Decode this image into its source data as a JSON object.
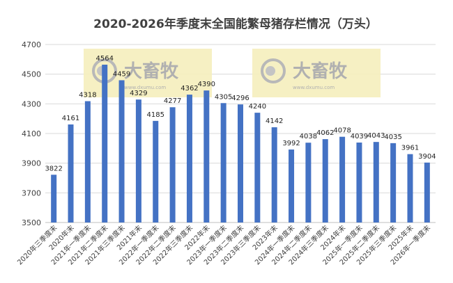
{
  "chart_data": {
    "type": "bar",
    "title": "2020-2026年季度末全国能繁母猪存栏情况（万头）",
    "categories": [
      "2020年三季度末",
      "2020年末",
      "2021年一季度末",
      "2021年二季度末",
      "2021年三季度末",
      "2021年末",
      "2022年一季度末",
      "2022年二季度末",
      "2022年三季度末",
      "2022年末",
      "2023年一季度末",
      "2023年二季度末",
      "2023年三季度末",
      "2023年末",
      "2024年一季度末",
      "2024年二季度末",
      "2024年三季度末",
      "2024年末",
      "2025年一季度末",
      "2025年二季度末",
      "2025年三季度末",
      "2025年末",
      "2026年一季度末"
    ],
    "values": [
      3822,
      4161,
      4318,
      4564,
      4459,
      4329,
      4185,
      4277,
      4362,
      4390,
      4305,
      4296,
      4240,
      4142,
      3992,
      4038,
      4062,
      4078,
      4039,
      4043,
      4035,
      3961,
      3904
    ],
    "yticks": [
      3500,
      3700,
      3900,
      4100,
      4300,
      4500,
      4700
    ],
    "ylim": [
      3500,
      4700
    ],
    "grid": true,
    "bar_color": "#4472c4",
    "xlabel": "",
    "ylabel": ""
  },
  "watermark": {
    "text": "大畜牧",
    "url": "www.dxumu.com"
  }
}
